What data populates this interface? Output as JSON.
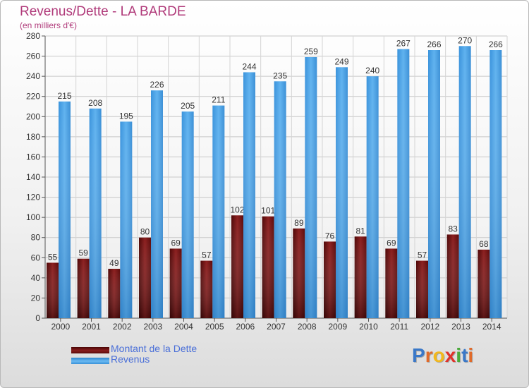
{
  "title": "Revenus/Dette - LA BARDE",
  "subtitle": "(en milliers d'€)",
  "colors": {
    "dette": "#7a1414",
    "revenus": "#4aa3e8",
    "title": "#b03a7a",
    "legend_text": "#4a6fd8"
  },
  "legend": [
    {
      "label": "Montant de la Dette",
      "color": "#6b0f0f"
    },
    {
      "label": "Revenus",
      "color": "#4aa3e8"
    }
  ],
  "logo": {
    "letters": [
      {
        "char": "P",
        "color": "#3a78c8"
      },
      {
        "char": "r",
        "color": "#e06a2a"
      },
      {
        "char": "o",
        "color": "#f2b81c"
      },
      {
        "char": "x",
        "color": "#e0322a"
      },
      {
        "char": "i",
        "color": "#4aaa3a"
      },
      {
        "char": "t",
        "color": "#3a78c8"
      },
      {
        "char": "i",
        "color": "#e06a2a"
      }
    ]
  },
  "chart_data": {
    "type": "bar",
    "categories": [
      "2000",
      "2001",
      "2002",
      "2003",
      "2004",
      "2005",
      "2006",
      "2007",
      "2008",
      "2009",
      "2010",
      "2011",
      "2012",
      "2013",
      "2014"
    ],
    "series": [
      {
        "name": "Montant de la Dette",
        "values": [
          55,
          59,
          49,
          80,
          69,
          57,
          102,
          101,
          89,
          76,
          81,
          69,
          57,
          83,
          68
        ]
      },
      {
        "name": "Revenus",
        "values": [
          215,
          208,
          195,
          226,
          205,
          211,
          244,
          235,
          259,
          249,
          240,
          267,
          266,
          270,
          266
        ]
      }
    ],
    "ylim": [
      0,
      280
    ],
    "yticks": [
      0,
      20,
      40,
      60,
      80,
      100,
      120,
      140,
      160,
      180,
      200,
      220,
      240,
      260,
      280
    ],
    "grid": true,
    "legend_position": "bottom-left",
    "data_labels": true
  }
}
